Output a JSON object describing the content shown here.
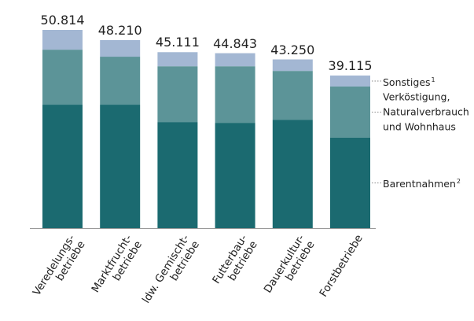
{
  "chart_data": {
    "type": "stacked-bar",
    "categories": [
      "Veredelungs-\nbetriebe",
      "Marktfrucht-\nbetriebe",
      "ldw. Gemischt-\nbetriebe",
      "Futterbau-\nbetriebe",
      "Dauerkultur-\nbetriebe",
      "Forstbetriebe"
    ],
    "series": [
      {
        "name": "Barentnahmen",
        "footnote": "2",
        "color": "#1b6a70",
        "values": [
          31650,
          31650,
          27200,
          27000,
          27800,
          23200
        ]
      },
      {
        "name": "Verköstigung, Naturalverbrauch und Wohnhaus",
        "color": "#5c9498",
        "values": [
          14100,
          12300,
          14300,
          14500,
          12500,
          13100
        ]
      },
      {
        "name": "Sonstiges",
        "footnote": "1",
        "color": "#a3b7d3",
        "values": [
          5064,
          4260,
          3611,
          3343,
          2950,
          2815
        ]
      }
    ],
    "totals": {
      "values": [
        50814,
        48210,
        45111,
        44843,
        43250,
        39115
      ],
      "value_labels": [
        "50.814",
        "48.210",
        "45.111",
        "44.843",
        "43.250",
        "39.115"
      ]
    }
  }
}
